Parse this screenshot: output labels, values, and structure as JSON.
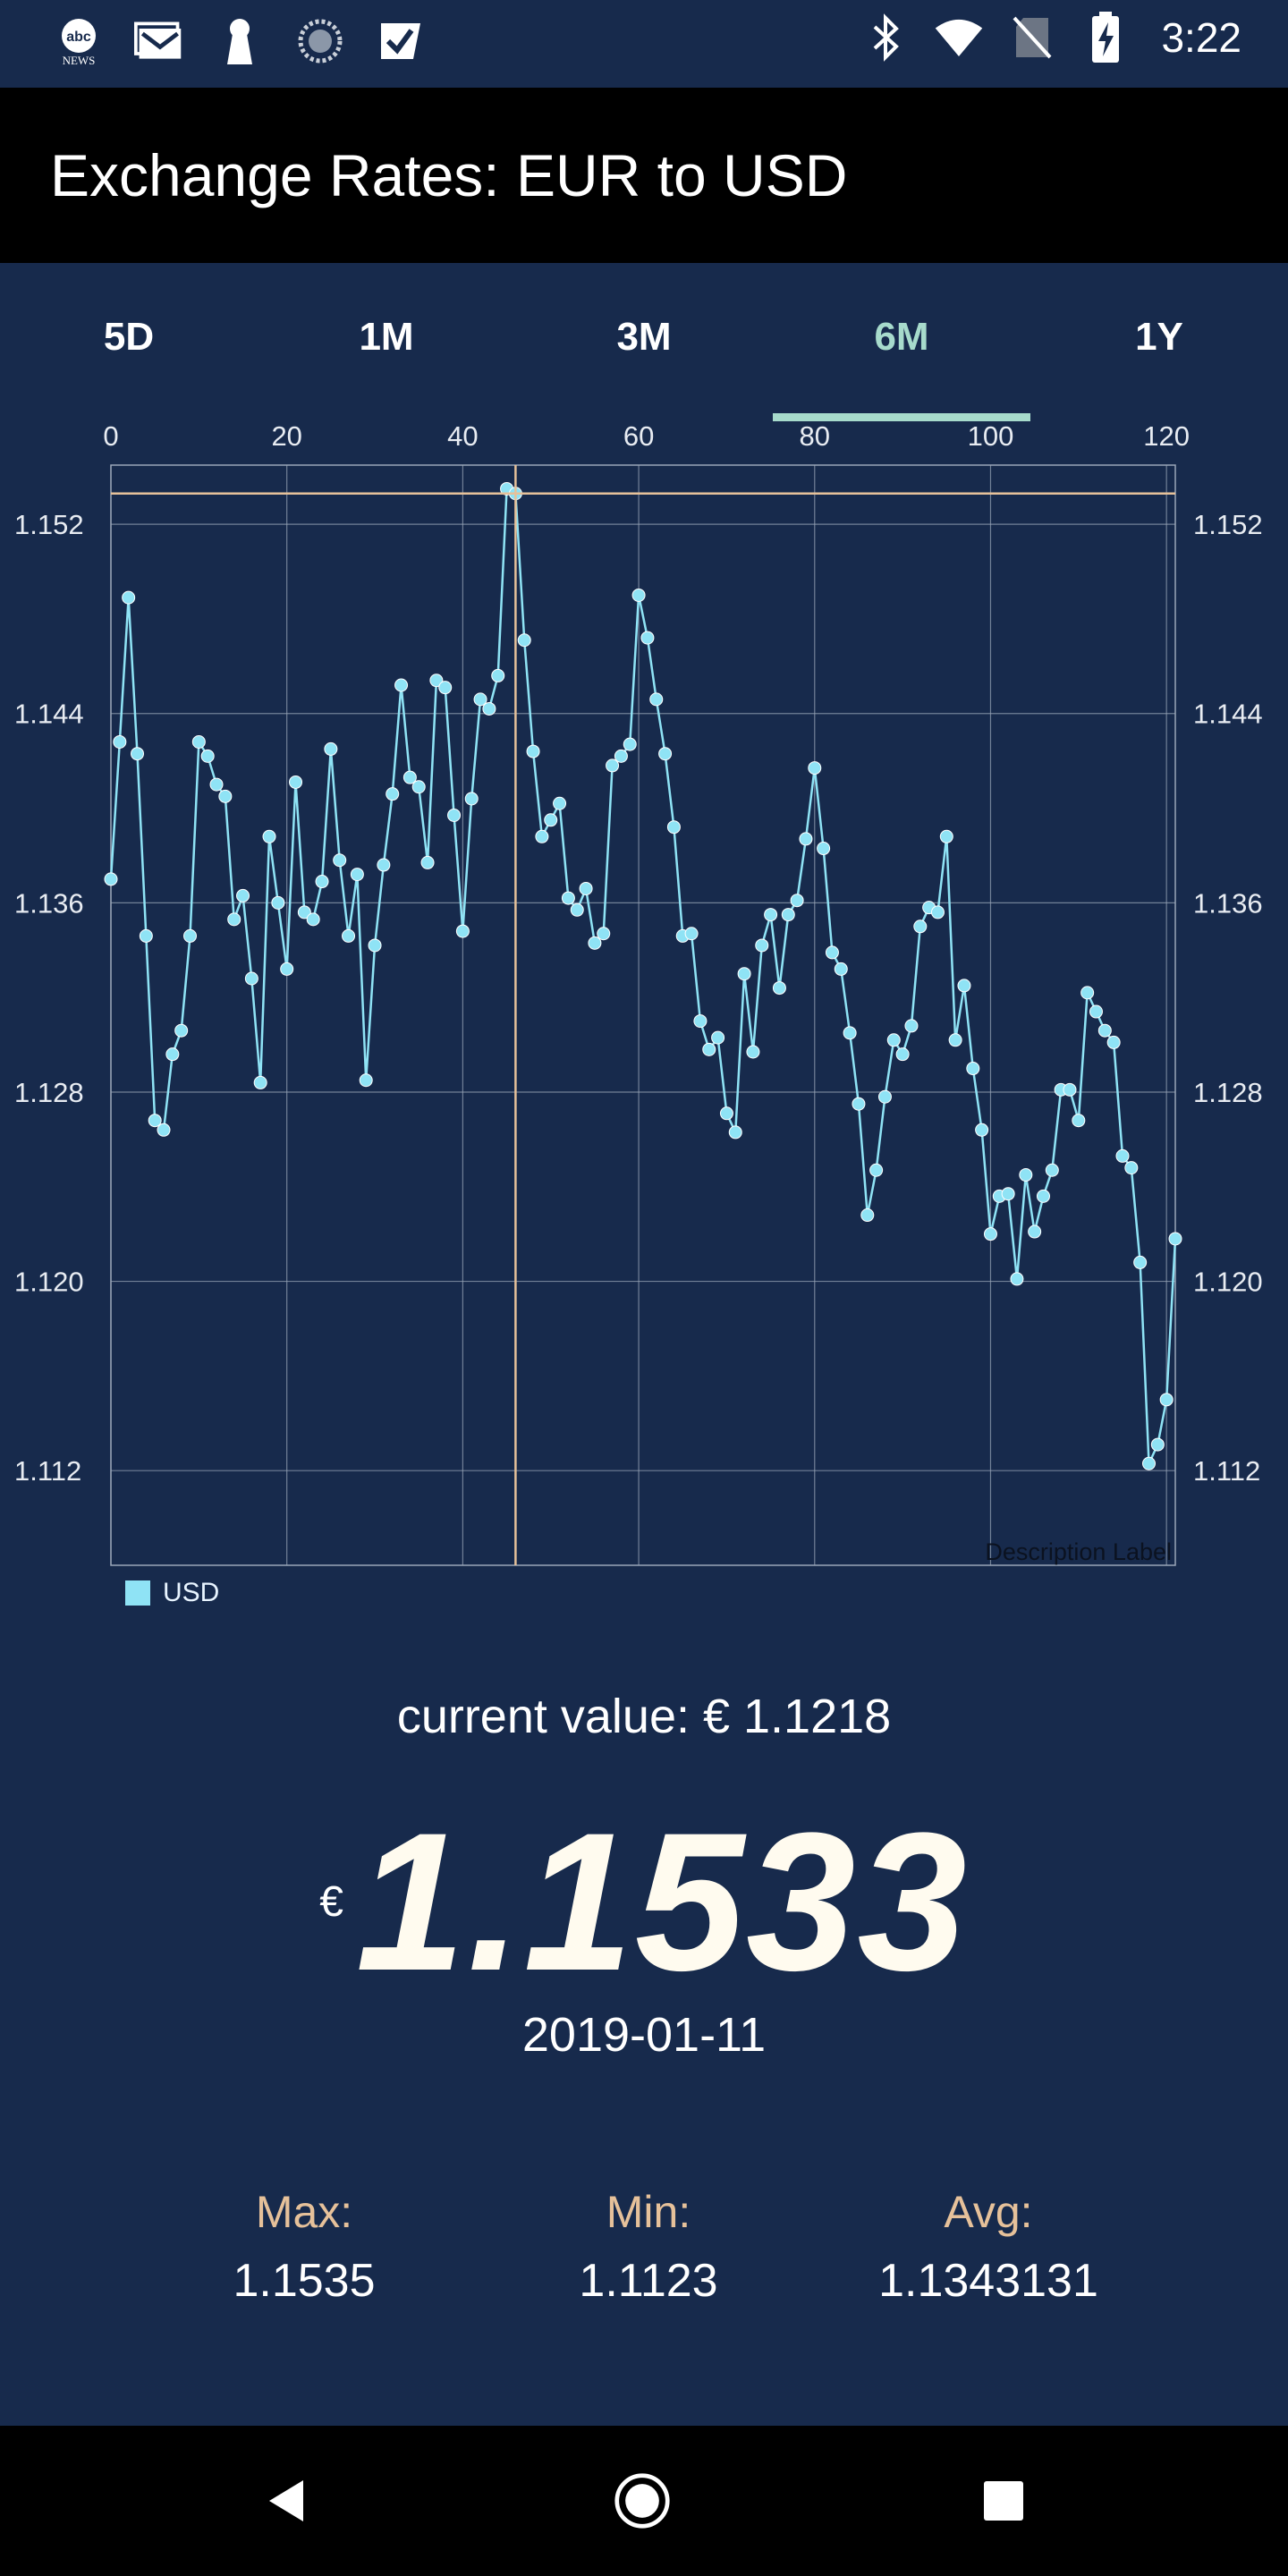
{
  "status_bar": {
    "time": "3:22",
    "left_icons": [
      "abc-news-icon",
      "gmail-icon",
      "keyhole-icon",
      "circle-icon",
      "tasks-check-icon"
    ],
    "right_icons": [
      "bluetooth-icon",
      "wifi-icon",
      "no-sim-icon",
      "battery-charging-icon"
    ],
    "news_badge": "NEWS",
    "abc_badge": "abc"
  },
  "app_bar": {
    "title": "Exchange Rates: EUR to USD"
  },
  "tabs": [
    {
      "label": "5D",
      "active": false
    },
    {
      "label": "1M",
      "active": false
    },
    {
      "label": "3M",
      "active": false
    },
    {
      "label": "6M",
      "active": true
    },
    {
      "label": "1Y",
      "active": false
    }
  ],
  "colors": {
    "background": "#172a4c",
    "accent": "#a7dbcc",
    "line": "#8fe3f5",
    "highlight": "#e6c19a",
    "grid": "#9aa6b8"
  },
  "chart_data": {
    "type": "line",
    "xlim": [
      0,
      121
    ],
    "ylim": [
      1.108,
      1.1545
    ],
    "x_ticks": [
      "0",
      "20",
      "40",
      "60",
      "80",
      "100",
      "120"
    ],
    "y_ticks": [
      "1.112",
      "1.120",
      "1.128",
      "1.136",
      "1.144",
      "1.152"
    ],
    "description_label": "Description Label",
    "legend": "USD",
    "highlight_point": {
      "x": 46,
      "y": 1.1533
    },
    "series": [
      {
        "name": "USD",
        "values": [
          1.137,
          1.1428,
          1.1489,
          1.1423,
          1.1346,
          1.1268,
          1.1264,
          1.1296,
          1.1306,
          1.1346,
          1.1428,
          1.1422,
          1.141,
          1.1405,
          1.1353,
          1.1363,
          1.1328,
          1.1284,
          1.1388,
          1.136,
          1.1332,
          1.1411,
          1.1356,
          1.1353,
          1.1369,
          1.1425,
          1.1378,
          1.1346,
          1.1372,
          1.1285,
          1.1342,
          1.1376,
          1.1406,
          1.1452,
          1.1413,
          1.1409,
          1.1377,
          1.1454,
          1.1451,
          1.1397,
          1.1348,
          1.1404,
          1.1446,
          1.1442,
          1.1456,
          1.1535,
          1.1533,
          1.1471,
          1.1424,
          1.1388,
          1.1395,
          1.1402,
          1.1362,
          1.1357,
          1.1366,
          1.1343,
          1.1347,
          1.1418,
          1.1422,
          1.1427,
          1.149,
          1.1472,
          1.1446,
          1.1423,
          1.1392,
          1.1346,
          1.1347,
          1.131,
          1.1298,
          1.1303,
          1.1271,
          1.1263,
          1.133,
          1.1297,
          1.1342,
          1.1355,
          1.1324,
          1.1355,
          1.1361,
          1.1387,
          1.1417,
          1.1383,
          1.1339,
          1.1332,
          1.1305,
          1.1275,
          1.1228,
          1.1247,
          1.1278,
          1.1302,
          1.1296,
          1.1308,
          1.135,
          1.1358,
          1.1356,
          1.1388,
          1.1302,
          1.1325,
          1.129,
          1.1264,
          1.122,
          1.1236,
          1.1237,
          1.1201,
          1.1245,
          1.1221,
          1.1236,
          1.1247,
          1.1281,
          1.1281,
          1.1268,
          1.1322,
          1.1314,
          1.1306,
          1.1301,
          1.1253,
          1.1248,
          1.1208,
          1.1123,
          1.1131,
          1.115,
          1.1218
        ]
      }
    ]
  },
  "summary": {
    "current_value_text": "current value: € 1.1218",
    "currency_symbol": "€",
    "selected_value": "1.1533",
    "selected_date": "2019-01-11",
    "max_label": "Max:",
    "max_value": "1.1535",
    "min_label": "Min:",
    "min_value": "1.1123",
    "avg_label": "Avg:",
    "avg_value": "1.1343131"
  },
  "nav_bar": {
    "buttons": [
      "back-icon",
      "home-icon",
      "recents-icon"
    ]
  }
}
